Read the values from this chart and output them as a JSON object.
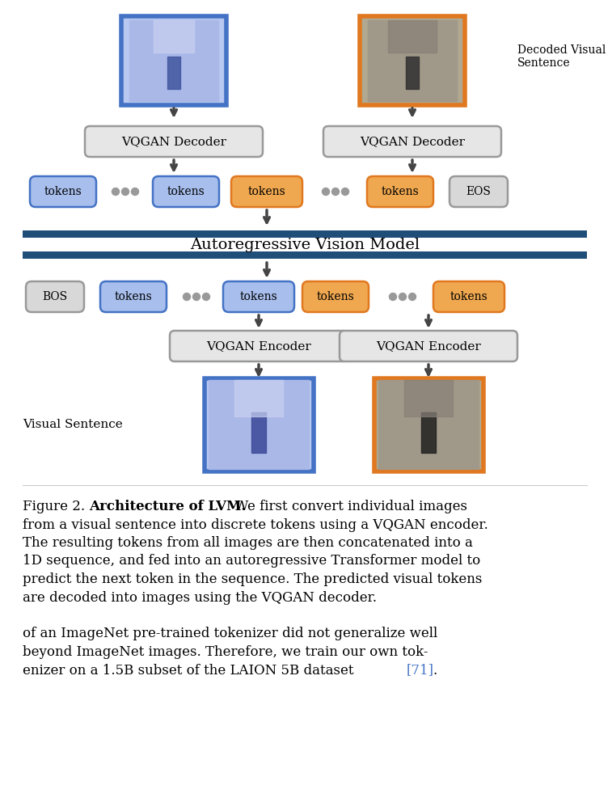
{
  "fig_width": 7.57,
  "fig_height": 9.82,
  "bg_color": "#ffffff",
  "blue_border": "#4472C4",
  "orange_border": "#E07820",
  "gray_border": "#888888",
  "token_blue_fill": "#A8BFEE",
  "token_orange_fill": "#F0A850",
  "dark_blue_bar": "#1F4E79",
  "autoregressive_label": "Autoregressive Vision Model",
  "decoded_label": "Decoded Visual\nSentence",
  "visual_sentence_label": "Visual Sentence",
  "fig2_normal": "Figure 2. ",
  "fig2_bold": "Architecture of LVM.",
  "fig2_rest": " We first convert individual images from a visual sentence into discrete tokens using a VQGAN encoder. The resulting tokens from all images are then concatenated into a 1D sequence, and fed into an autoregressive Transformer model to predict the next token in the sequence. The predicted visual tokens are decoded into images using the VQGAN decoder.",
  "para2": "of an ImageNet pre-trained tokenizer did not generalize well beyond ImageNet images. Therefore, we train our own tok-enizer on a 1.5B subset of the LAION 5B dataset ",
  "ref71": "[71]",
  "para2_end": "."
}
